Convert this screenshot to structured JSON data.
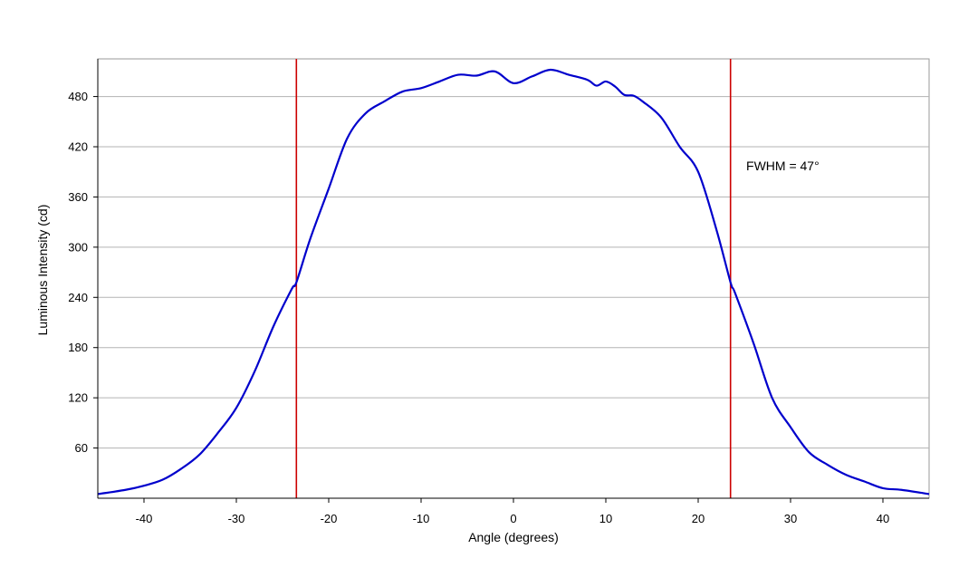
{
  "chart_data": {
    "type": "line",
    "title": "",
    "xlabel": "Angle (degrees)",
    "ylabel": "Luminous Intensity (cd)",
    "xlim": [
      -45,
      45
    ],
    "ylim": [
      0,
      525
    ],
    "x_ticks": [
      -40,
      -30,
      -20,
      -10,
      0,
      10,
      20,
      30,
      40
    ],
    "y_ticks": [
      60,
      120,
      180,
      240,
      300,
      360,
      420,
      480
    ],
    "grid": "horizontal",
    "legend": "none",
    "series": [
      {
        "color": "#0000cc",
        "x": [
          -45,
          -42,
          -40,
          -38,
          -36,
          -34,
          -32,
          -30,
          -28,
          -26,
          -24,
          -23.5,
          -22,
          -20,
          -18,
          -16,
          -14,
          -12,
          -10,
          -8,
          -6,
          -4,
          -2,
          0,
          2,
          4,
          6,
          8,
          9,
          10,
          11,
          12,
          13,
          14,
          16,
          18,
          20,
          22,
          23.5,
          24,
          26,
          28,
          30,
          32,
          34,
          36,
          38,
          40,
          42,
          45
        ],
        "y": [
          5,
          10,
          15,
          22,
          35,
          52,
          78,
          108,
          152,
          205,
          250,
          258,
          310,
          370,
          430,
          460,
          474,
          486,
          490,
          498,
          506,
          505,
          510,
          496,
          504,
          512,
          506,
          500,
          493,
          498,
          492,
          482,
          481,
          474,
          455,
          420,
          390,
          320,
          258,
          245,
          185,
          120,
          85,
          55,
          40,
          28,
          20,
          12,
          10,
          5
        ]
      }
    ],
    "reference_lines": [
      {
        "x": -23.5,
        "color": "#cc0000"
      },
      {
        "x": 23.5,
        "color": "#cc0000"
      }
    ],
    "annotations": [
      {
        "text": "FWHM = 47°",
        "x": 25.2,
        "y": 392
      }
    ],
    "colors": {
      "plot_border": "#999999",
      "gridline": "#b3b3b3",
      "axis_line": "#000000"
    }
  }
}
